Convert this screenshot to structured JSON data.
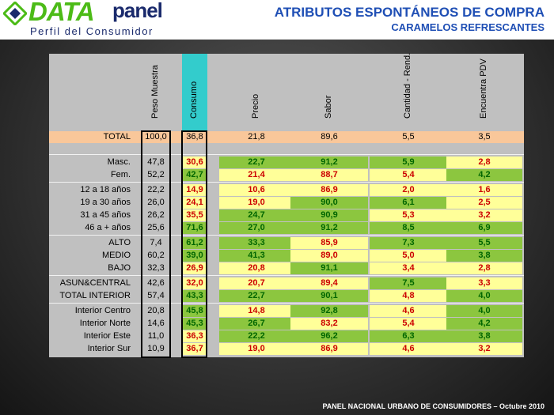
{
  "header": {
    "logo_data": "DATA",
    "logo_panel": "panel",
    "logo_subtitle": "Perfil del Consumidor",
    "title": "ATRIBUTOS ESPONTÁNEOS DE COMPRA",
    "subtitle": "CARAMELOS REFRESCANTES"
  },
  "table": {
    "columns": [
      "Peso Muestra",
      "Consumo",
      "Precio",
      "Sabor",
      "Cantidad - Rend.",
      "Encuentra PDV"
    ],
    "total": {
      "label": "TOTAL",
      "values": [
        "100,0",
        "36,8",
        "21,8",
        "89,6",
        "5,5",
        "3,5"
      ]
    },
    "rows": [
      {
        "label": "Masc.",
        "values": [
          "47,8",
          "30,6",
          "22,7",
          "91,2",
          "5,9",
          "2,8"
        ],
        "colors": [
          "n",
          "y",
          "g",
          "g",
          "g",
          "y"
        ]
      },
      {
        "label": "Fem.",
        "values": [
          "52,2",
          "42,7",
          "21,4",
          "88,7",
          "5,4",
          "4,2"
        ],
        "colors": [
          "n",
          "g",
          "y",
          "y",
          "y",
          "g"
        ]
      },
      {
        "label": "12 a 18 años",
        "values": [
          "22,2",
          "14,9",
          "10,6",
          "86,9",
          "2,0",
          "1,6"
        ],
        "colors": [
          "n",
          "y",
          "y",
          "y",
          "y",
          "y"
        ]
      },
      {
        "label": "19 a 30 años",
        "values": [
          "26,0",
          "24,1",
          "19,0",
          "90,0",
          "6,1",
          "2,5"
        ],
        "colors": [
          "n",
          "y",
          "y",
          "g",
          "g",
          "y"
        ]
      },
      {
        "label": "31 a 45 años",
        "values": [
          "26,2",
          "35,5",
          "24,7",
          "90,9",
          "5,3",
          "3,2"
        ],
        "colors": [
          "n",
          "y",
          "g",
          "g",
          "y",
          "y"
        ]
      },
      {
        "label": "46 a + años",
        "values": [
          "25,6",
          "71,6",
          "27,0",
          "91,2",
          "8,5",
          "6,9"
        ],
        "colors": [
          "n",
          "g",
          "g",
          "g",
          "g",
          "g"
        ]
      },
      {
        "label": "ALTO",
        "values": [
          "7,4",
          "61,2",
          "33,3",
          "85,9",
          "7,3",
          "5,5"
        ],
        "colors": [
          "n",
          "g",
          "g",
          "y",
          "g",
          "g"
        ]
      },
      {
        "label": "MEDIO",
        "values": [
          "60,2",
          "39,0",
          "41,3",
          "89,0",
          "5,0",
          "3,8"
        ],
        "colors": [
          "n",
          "g",
          "g",
          "y",
          "y",
          "g"
        ]
      },
      {
        "label": "BAJO",
        "values": [
          "32,3",
          "26,9",
          "20,8",
          "91,1",
          "3,4",
          "2,8"
        ],
        "colors": [
          "n",
          "y",
          "y",
          "g",
          "y",
          "y"
        ]
      },
      {
        "label": "ASUN&CENTRAL",
        "values": [
          "42,6",
          "32,0",
          "20,7",
          "89,4",
          "7,5",
          "3,3"
        ],
        "colors": [
          "n",
          "y",
          "y",
          "y",
          "g",
          "y"
        ]
      },
      {
        "label": "TOTAL INTERIOR",
        "values": [
          "57,4",
          "43,3",
          "22,7",
          "90,1",
          "4,8",
          "4,0"
        ],
        "colors": [
          "n",
          "g",
          "g",
          "g",
          "y",
          "g"
        ]
      },
      {
        "label": "Interior Centro",
        "values": [
          "20,8",
          "45,8",
          "14,8",
          "92,8",
          "4,6",
          "4,0"
        ],
        "colors": [
          "n",
          "g",
          "y",
          "g",
          "y",
          "g"
        ]
      },
      {
        "label": "Interior Norte",
        "values": [
          "14,6",
          "45,3",
          "26,7",
          "83,2",
          "5,4",
          "4,2"
        ],
        "colors": [
          "n",
          "g",
          "g",
          "y",
          "y",
          "g"
        ]
      },
      {
        "label": "Interior Este",
        "values": [
          "11,0",
          "36,3",
          "22,2",
          "96,2",
          "6,3",
          "3,8"
        ],
        "colors": [
          "n",
          "y",
          "g",
          "g",
          "g",
          "g"
        ]
      },
      {
        "label": "Interior Sur",
        "values": [
          "10,9",
          "36,7",
          "19,0",
          "86,9",
          "4,6",
          "3,2"
        ],
        "colors": [
          "n",
          "y",
          "y",
          "y",
          "y",
          "y"
        ]
      }
    ]
  },
  "colors": {
    "green": "#8cc63f",
    "yellow": "#ffff99",
    "total_row": "#f9c79a",
    "consumo_header": "#33cccc",
    "title": "#1f4fb5",
    "text_red": "#cc0000",
    "text_green": "#006600"
  },
  "footer": "PANEL NACIONAL URBANO DE CONSUMIDORES – Octubre  2010"
}
